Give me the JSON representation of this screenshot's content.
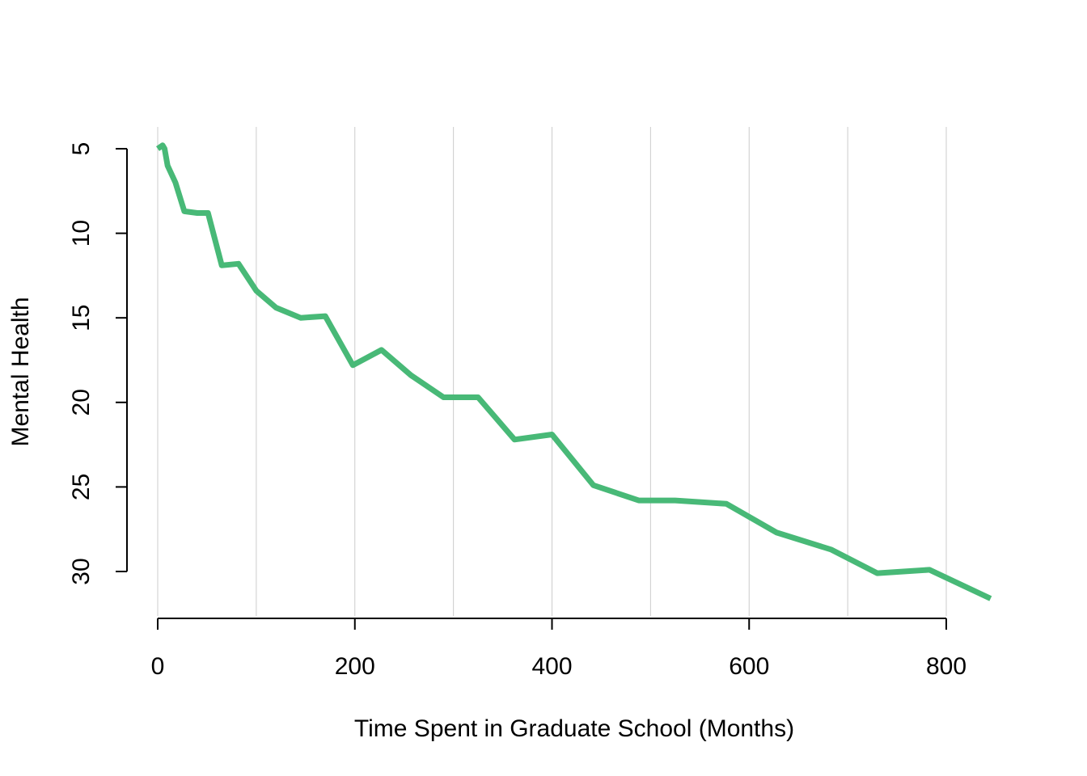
{
  "chart_data": {
    "type": "line",
    "title": "",
    "xlabel": "Time Spent in Graduate School (Months)",
    "ylabel": "Mental Health",
    "xlim": [
      0,
      845
    ],
    "ylim": [
      5,
      31.5
    ],
    "y_reversed": true,
    "x_ticks": [
      0,
      200,
      400,
      600,
      800
    ],
    "x_tick_labels": [
      "0",
      "200",
      "400",
      "600",
      "800"
    ],
    "y_ticks": [
      5,
      10,
      15,
      20,
      25,
      30
    ],
    "y_tick_labels": [
      "5",
      "10",
      "15",
      "20",
      "25",
      "30"
    ],
    "vertical_gridlines": [
      0,
      100,
      200,
      300,
      400,
      500,
      600,
      700,
      800
    ],
    "grid": "vertical",
    "line_color": "#48b977",
    "grid_color": "#cccccc",
    "series": [
      {
        "x": [
          0,
          5,
          7,
          10,
          18,
          27,
          40,
          51,
          65,
          82,
          100,
          120,
          145,
          170,
          198,
          227,
          257,
          290,
          325,
          362,
          400,
          442,
          488,
          525,
          577,
          628,
          683,
          730,
          783,
          845
        ],
        "values": [
          5.0,
          4.8,
          5.0,
          6.0,
          7.0,
          8.7,
          8.8,
          8.8,
          11.9,
          11.8,
          13.4,
          14.4,
          15.0,
          14.9,
          17.8,
          16.9,
          18.4,
          19.7,
          19.7,
          22.2,
          21.9,
          24.9,
          25.8,
          25.8,
          26.0,
          27.7,
          28.7,
          30.1,
          29.9,
          31.6
        ]
      }
    ]
  }
}
